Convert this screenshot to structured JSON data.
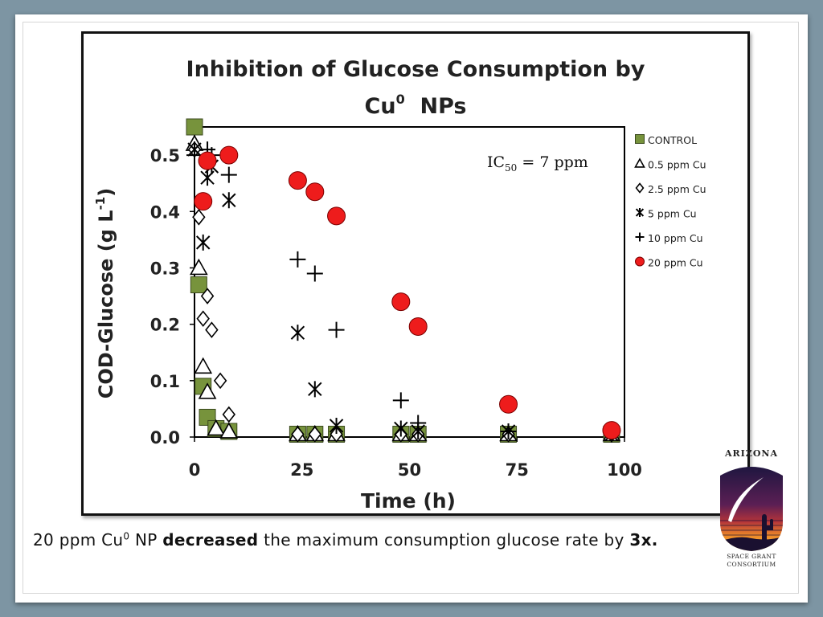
{
  "caption": {
    "part1": "20 ppm Cu",
    "sup": "0",
    "part2": " NP ",
    "bold1": "decreased",
    "part3": " the maximum consumption glucose rate by ",
    "bold2": "3x."
  },
  "logo": {
    "top_text": "ARIZONA",
    "bottom_line1": "SPACE GRANT",
    "bottom_line2": "CONSORTIUM",
    "colors": [
      "#2b1b4a",
      "#7a1f4f",
      "#c8402f",
      "#f08c28",
      "#f6c63a"
    ]
  },
  "chart_data": {
    "type": "scatter",
    "title_line1": "Inhibition of Glucose Consumption by",
    "title_line2_base": "Cu",
    "title_line2_sup": "0",
    "title_line2_rest": "  NPs",
    "xlabel": "Time (h)",
    "ylabel_base": "COD-Glucose (g L",
    "ylabel_sup": "-1",
    "ylabel_end": ")",
    "xlim": [
      0,
      100
    ],
    "ylim": [
      0,
      0.55
    ],
    "xticks": [
      0,
      25,
      50,
      75,
      100
    ],
    "yticks": [
      0.0,
      0.1,
      0.2,
      0.3,
      0.4,
      0.5
    ],
    "ytick_labels": [
      "0.0",
      "0.1",
      "0.2",
      "0.3",
      "0.4",
      "0.5"
    ],
    "annotation": {
      "base": "IC",
      "sub": "50",
      "rest": " = 7 ppm"
    },
    "legend_position": "right",
    "grid": false,
    "series": [
      {
        "name": "CONTROL",
        "marker": "square",
        "color": "#77933c",
        "points": [
          [
            0,
            0.55
          ],
          [
            1,
            0.27
          ],
          [
            2,
            0.09
          ],
          [
            3,
            0.035
          ],
          [
            5,
            0.015
          ],
          [
            8,
            0.01
          ],
          [
            24,
            0.005
          ],
          [
            28,
            0.005
          ],
          [
            33,
            0.005
          ],
          [
            48,
            0.005
          ],
          [
            52,
            0.005
          ],
          [
            73,
            0.005
          ],
          [
            97,
            0.005
          ]
        ]
      },
      {
        "name": "0.5 ppm Cu",
        "marker": "triangle",
        "color": "#000000",
        "points": [
          [
            0,
            0.52
          ],
          [
            1,
            0.3
          ],
          [
            2,
            0.125
          ],
          [
            3,
            0.08
          ],
          [
            5,
            0.015
          ],
          [
            8,
            0.01
          ],
          [
            24,
            0.005
          ],
          [
            28,
            0.005
          ],
          [
            33,
            0.005
          ],
          [
            48,
            0.005
          ],
          [
            52,
            0.005
          ],
          [
            73,
            0.005
          ],
          [
            97,
            0.005
          ]
        ]
      },
      {
        "name": "2.5 ppm Cu",
        "marker": "diamond",
        "color": "#000000",
        "points": [
          [
            0,
            0.51
          ],
          [
            1,
            0.39
          ],
          [
            2,
            0.21
          ],
          [
            3,
            0.25
          ],
          [
            4,
            0.19
          ],
          [
            6,
            0.1
          ],
          [
            8,
            0.04
          ],
          [
            24,
            0.005
          ],
          [
            28,
            0.005
          ],
          [
            33,
            0.005
          ],
          [
            48,
            0.005
          ],
          [
            52,
            0.005
          ],
          [
            73,
            0.005
          ],
          [
            97,
            0.005
          ]
        ]
      },
      {
        "name": "5 ppm Cu",
        "marker": "asterisk",
        "color": "#000000",
        "points": [
          [
            0,
            0.51
          ],
          [
            2,
            0.345
          ],
          [
            3,
            0.46
          ],
          [
            4,
            0.48
          ],
          [
            8,
            0.42
          ],
          [
            24,
            0.185
          ],
          [
            28,
            0.085
          ],
          [
            33,
            0.02
          ],
          [
            48,
            0.015
          ],
          [
            52,
            0.01
          ],
          [
            73,
            0.01
          ],
          [
            97,
            0.005
          ]
        ]
      },
      {
        "name": "10 ppm Cu",
        "marker": "plus",
        "color": "#000000",
        "points": [
          [
            0,
            0.5
          ],
          [
            3,
            0.51
          ],
          [
            4,
            0.5
          ],
          [
            8,
            0.465
          ],
          [
            24,
            0.315
          ],
          [
            28,
            0.29
          ],
          [
            33,
            0.19
          ],
          [
            48,
            0.065
          ],
          [
            52,
            0.025
          ],
          [
            73,
            0.01
          ],
          [
            97,
            0.005
          ]
        ]
      },
      {
        "name": "20 ppm Cu",
        "marker": "circle",
        "color": "#ee1c1c",
        "points": [
          [
            2,
            0.418
          ],
          [
            3,
            0.49
          ],
          [
            8,
            0.5
          ],
          [
            24,
            0.455
          ],
          [
            28,
            0.435
          ],
          [
            33,
            0.392
          ],
          [
            48,
            0.24
          ],
          [
            52,
            0.196
          ],
          [
            73,
            0.058
          ],
          [
            97,
            0.012
          ]
        ]
      }
    ]
  }
}
